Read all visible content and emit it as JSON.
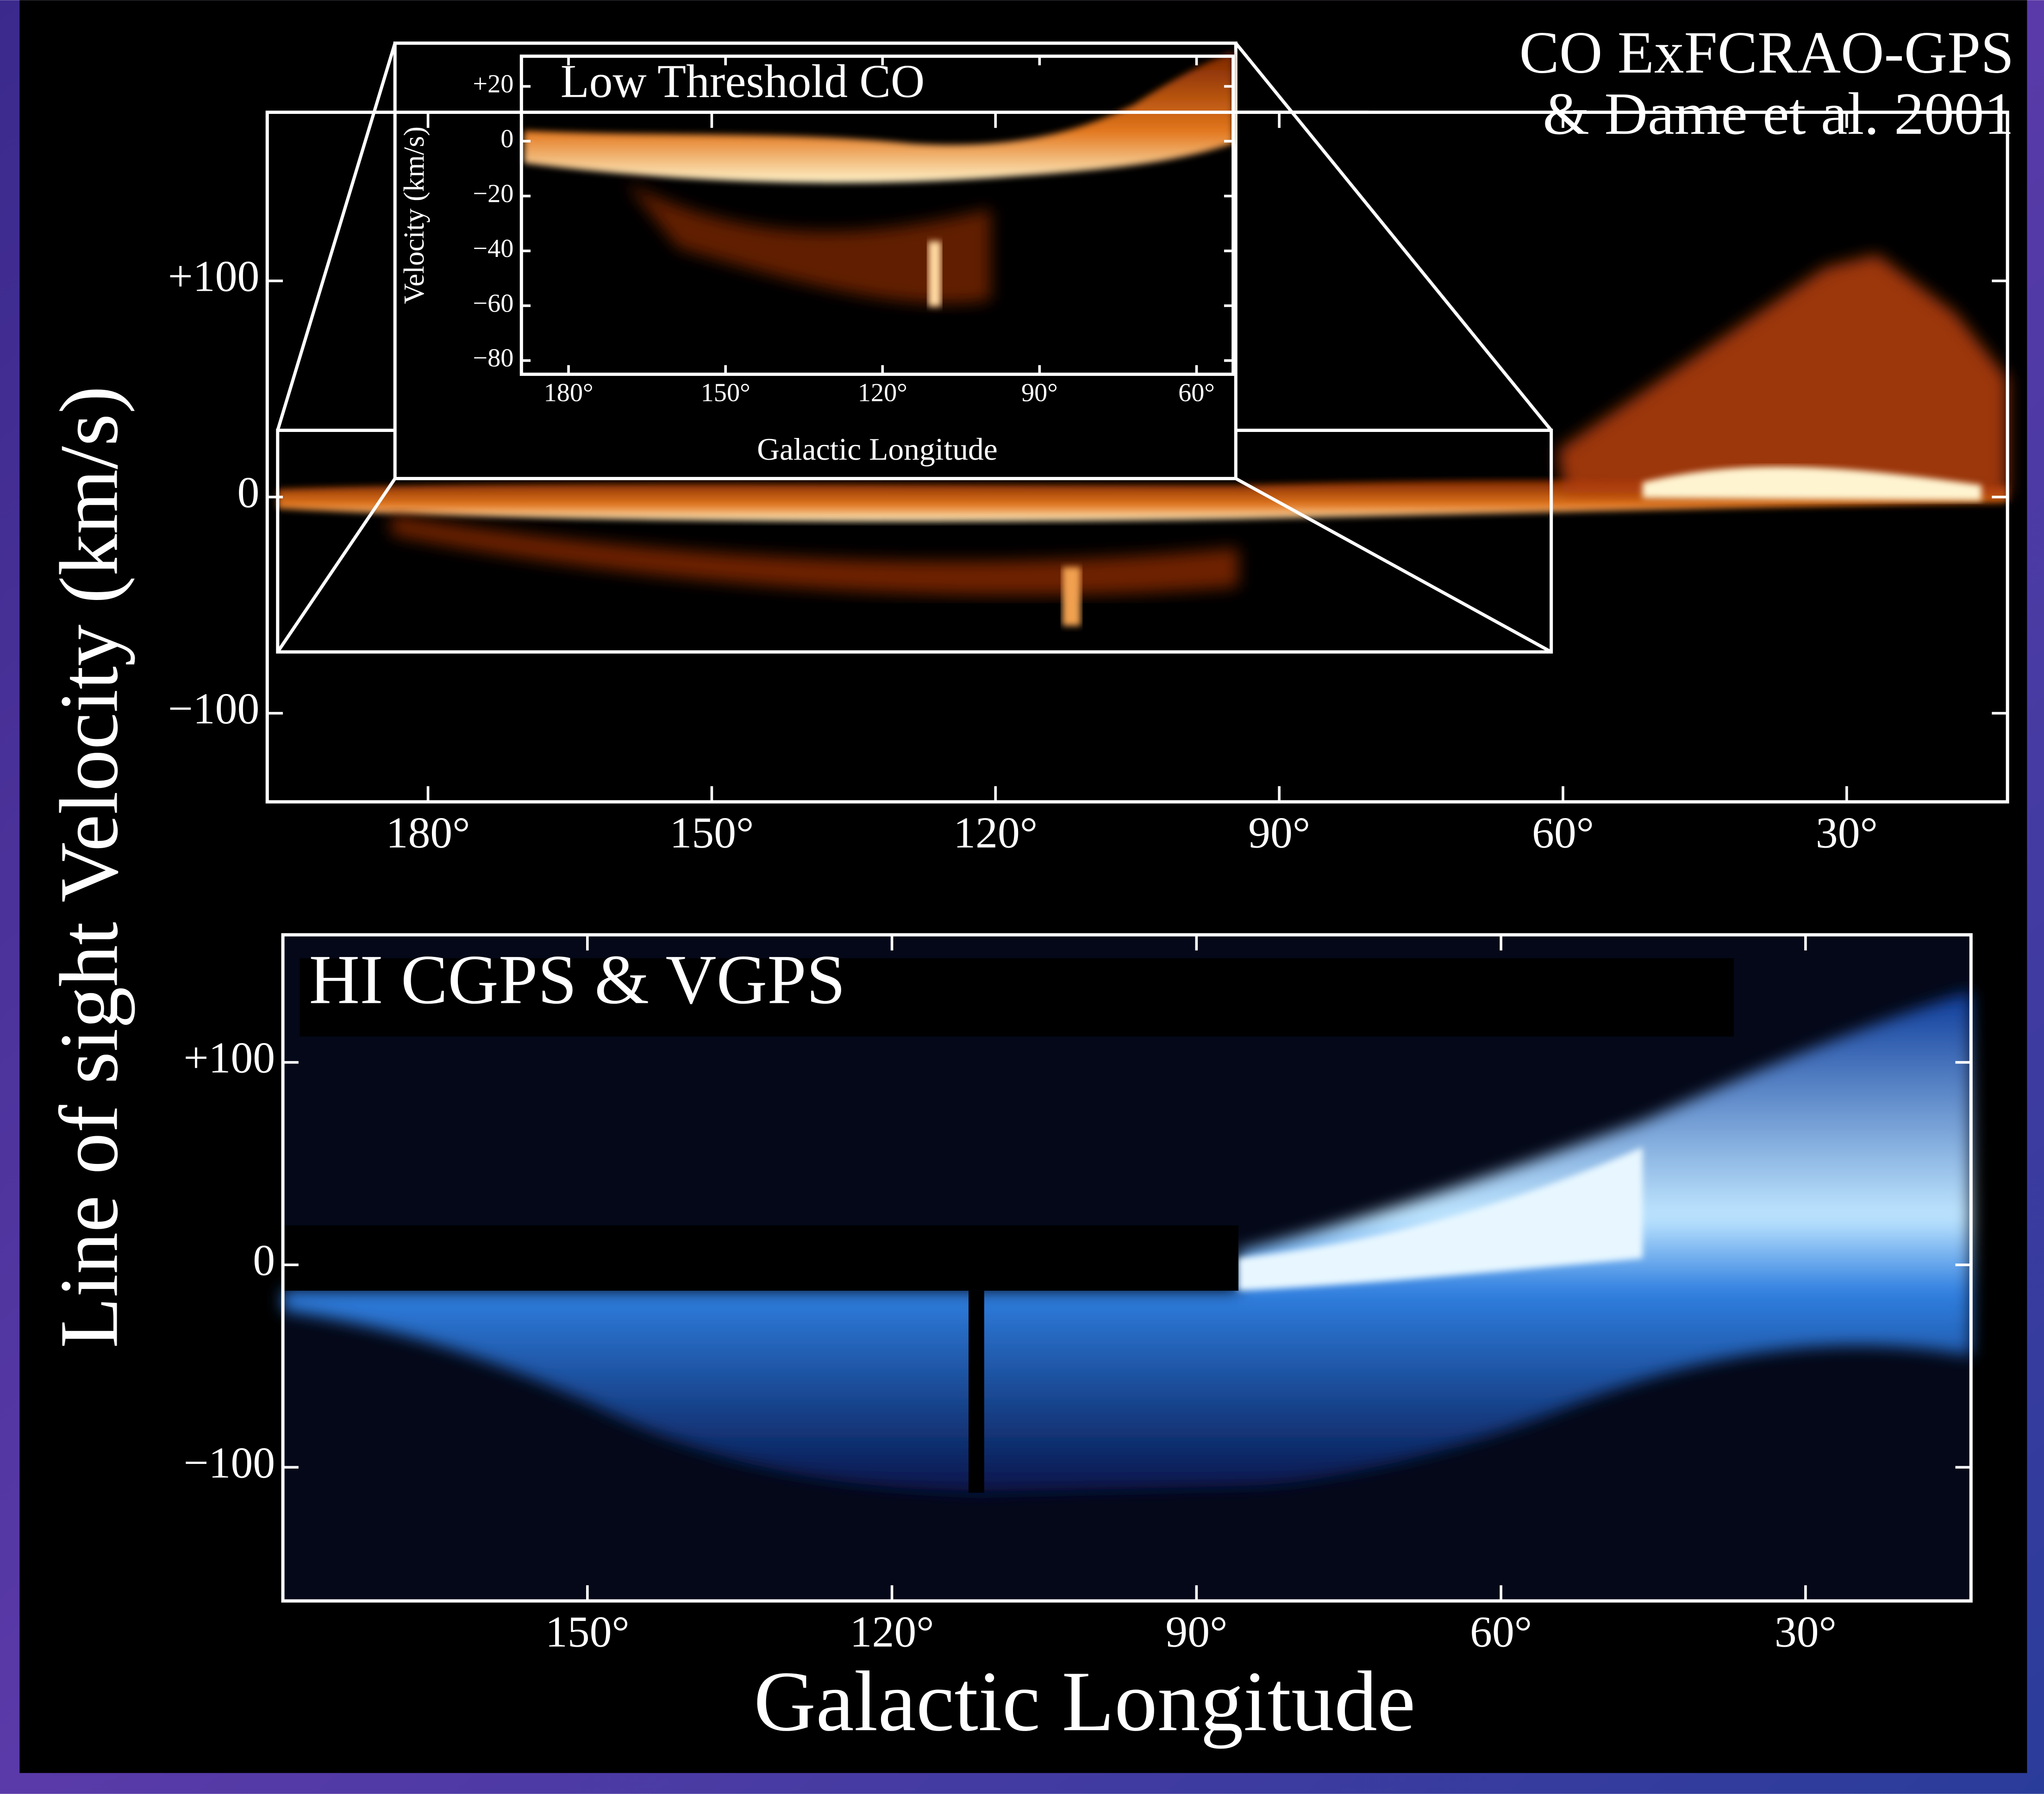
{
  "figure": {
    "ylabel": "Line of sight Velocity (km/s)",
    "xlabel": "Galactic Longitude"
  },
  "chart_data": [
    {
      "type": "heatmap",
      "title": [
        "CO ExFCRAO-GPS",
        "& Dame et al. 2001"
      ],
      "xlim": [
        197,
        13
      ],
      "ylim": [
        -141,
        178
      ],
      "xticks": [
        {
          "value": 180,
          "label": "180°"
        },
        {
          "value": 150,
          "label": "150°"
        },
        {
          "value": 120,
          "label": "120°"
        },
        {
          "value": 90,
          "label": "90°"
        },
        {
          "value": 60,
          "label": "60°"
        },
        {
          "value": 30,
          "label": "30°"
        }
      ],
      "yticks": [
        {
          "value": 100,
          "label": "+100"
        },
        0,
        {
          "value": -100,
          "label": "−100"
        }
      ]
    },
    {
      "type": "heatmap",
      "title": "Low Threshold CO",
      "xlabel": "Galactic Longitude",
      "ylabel": "Velocity (km/s)",
      "xlim": [
        189,
        53
      ],
      "ylim": [
        -85,
        31
      ],
      "xticks": [
        {
          "value": 180,
          "label": "180°"
        },
        {
          "value": 150,
          "label": "150°"
        },
        {
          "value": 120,
          "label": "120°"
        },
        {
          "value": 90,
          "label": "90°"
        },
        {
          "value": 60,
          "label": "60°"
        }
      ],
      "yticks": [
        {
          "value": 20,
          "label": "+20"
        },
        0,
        {
          "value": -20,
          "label": "−20"
        },
        {
          "value": -40,
          "label": "−40"
        },
        {
          "value": -60,
          "label": "−60"
        },
        {
          "value": -80,
          "label": "−80"
        }
      ]
    },
    {
      "type": "heatmap",
      "title": "HI CGPS & VGPS",
      "xlim": [
        180,
        13.7
      ],
      "ylim": [
        -166,
        163
      ],
      "xticks": [
        {
          "value": 150,
          "label": "150°"
        },
        {
          "value": 120,
          "label": "120°"
        },
        {
          "value": 90,
          "label": "90°"
        },
        {
          "value": 60,
          "label": "60°"
        },
        {
          "value": 30,
          "label": "30°"
        }
      ],
      "yticks": [
        {
          "value": 100,
          "label": "+100"
        },
        0,
        {
          "value": -100,
          "label": "−100"
        }
      ]
    }
  ]
}
